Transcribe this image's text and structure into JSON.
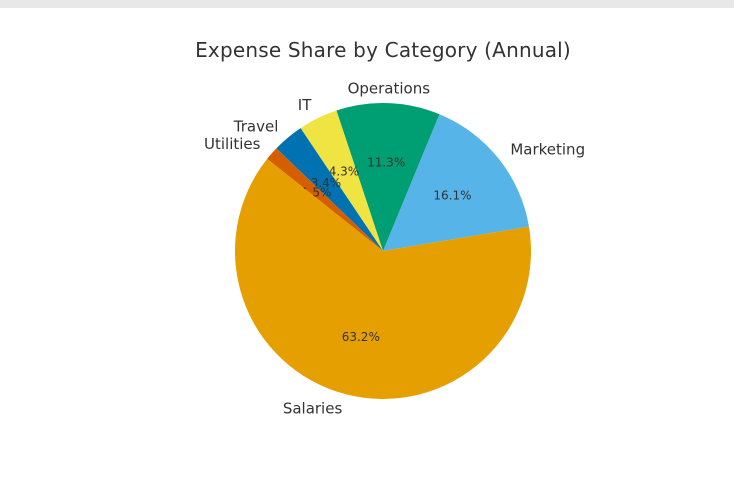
{
  "chart_data": {
    "type": "pie",
    "title": "Expense Share by Category (Annual)",
    "slices": [
      {
        "name": "Marketing",
        "value": 16.1,
        "pct_label": "16.1%",
        "color": "#56B4E9"
      },
      {
        "name": "Operations",
        "value": 11.3,
        "pct_label": "11.3%",
        "color": "#009E73"
      },
      {
        "name": "IT",
        "value": 4.3,
        "pct_label": "4.3%",
        "color": "#F0E442"
      },
      {
        "name": "Travel",
        "value": 3.4,
        "pct_label": "3.4%",
        "color": "#0072B2"
      },
      {
        "name": "Utilities",
        "value": 1.5,
        "pct_label": "1.5%",
        "color": "#D55E00"
      },
      {
        "name": "Salaries",
        "value": 63.2,
        "pct_label": "63.2%",
        "color": "#E69F00"
      }
    ],
    "start_angle_deg": 9.5,
    "direction": "counterclockwise"
  }
}
